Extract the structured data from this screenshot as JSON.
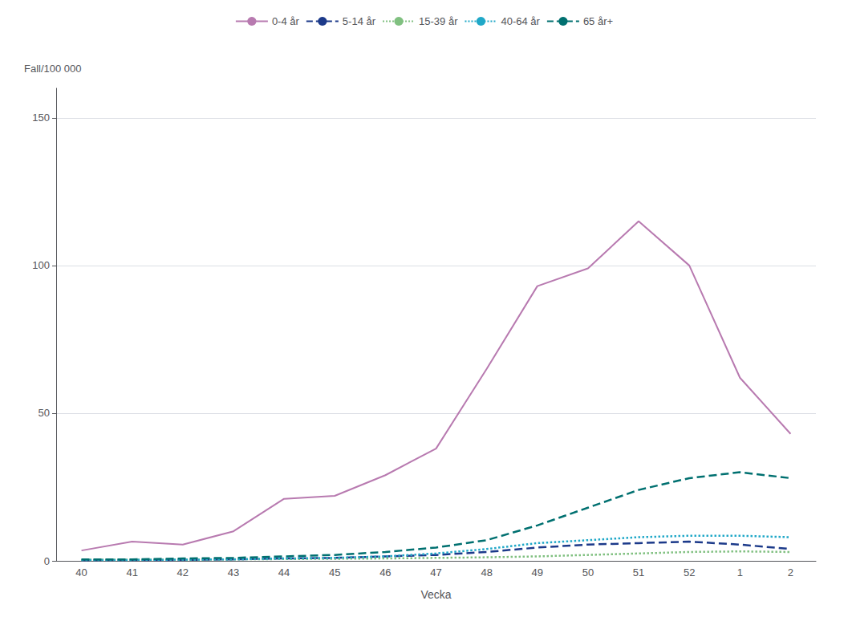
{
  "chart_data": {
    "type": "line",
    "x_label": "Vecka",
    "y_label": "Fall/100 000",
    "categories": [
      40,
      41,
      42,
      43,
      44,
      45,
      46,
      47,
      48,
      49,
      50,
      51,
      52,
      1,
      2
    ],
    "series": [
      {
        "name": "0-4 år",
        "color": "#b87ab0",
        "line_style": "solid",
        "values": [
          3.5,
          6.5,
          5.5,
          10.0,
          21.0,
          22.0,
          29.0,
          38.0,
          65.0,
          93.0,
          99.0,
          115.0,
          100.0,
          62.0,
          43.0
        ]
      },
      {
        "name": "5-14 år",
        "color": "#1c3a8a",
        "line_style": "dashed",
        "values": [
          0.2,
          0.3,
          0.3,
          0.5,
          0.8,
          1.0,
          1.5,
          2.0,
          3.0,
          4.5,
          5.5,
          6.0,
          6.5,
          5.5,
          4.0
        ]
      },
      {
        "name": "15-39 år",
        "color": "#80c080",
        "line_style": "dotted",
        "values": [
          0.4,
          0.4,
          0.4,
          0.5,
          0.6,
          0.7,
          0.8,
          1.0,
          1.2,
          1.5,
          2.0,
          2.5,
          3.0,
          3.2,
          3.0
        ]
      },
      {
        "name": "40-64 år",
        "color": "#20a8c8",
        "line_style": "dotted",
        "values": [
          0.3,
          0.3,
          0.4,
          0.5,
          0.8,
          1.0,
          1.5,
          2.5,
          4.0,
          6.0,
          7.0,
          8.0,
          8.5,
          8.5,
          8.0
        ]
      },
      {
        "name": "65 år+",
        "color": "#007070",
        "line_style": "dashed",
        "values": [
          0.5,
          0.5,
          0.8,
          1.0,
          1.5,
          2.0,
          3.0,
          4.5,
          7.0,
          12.0,
          18.0,
          24.0,
          28.0,
          30.0,
          28.0
        ]
      }
    ],
    "ylim": [
      0,
      160
    ],
    "yticks": [
      0,
      50,
      100,
      150
    ],
    "grid": true,
    "legend": "top"
  }
}
